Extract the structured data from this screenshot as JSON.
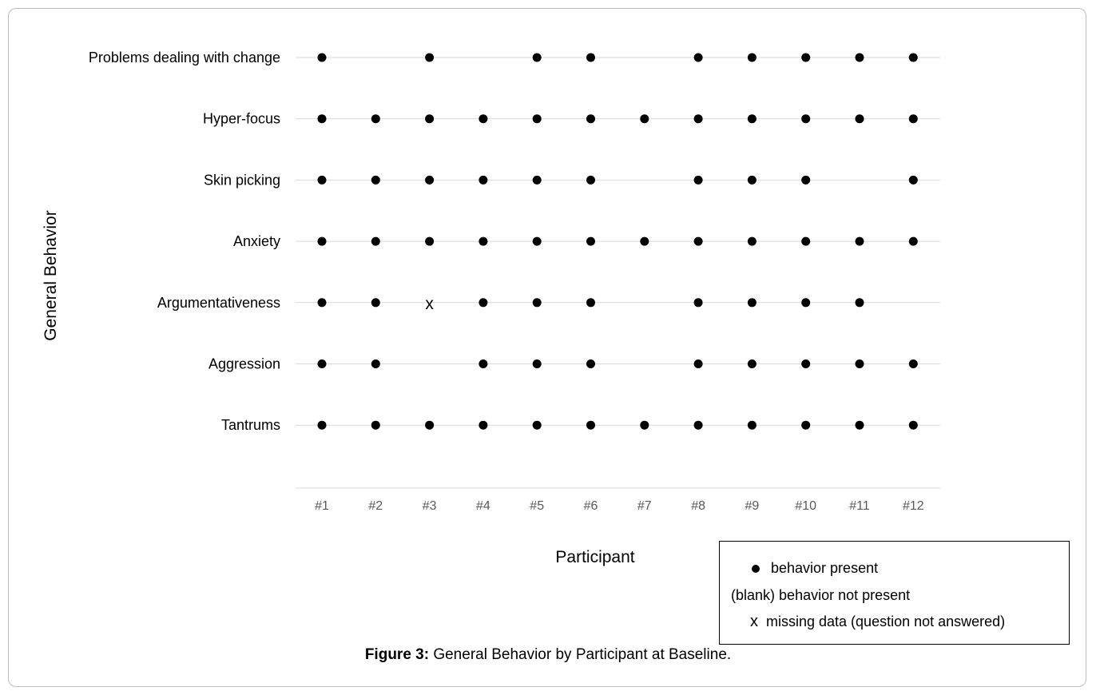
{
  "chart_data": {
    "type": "scatter",
    "ylabel": "General Behavior",
    "xlabel": "Participant",
    "categories": [
      "Problems dealing with change",
      "Hyper-focus",
      "Skin picking",
      "Anxiety",
      "Argumentativeness",
      "Aggression",
      "Tantrums"
    ],
    "participants": [
      "#1",
      "#2",
      "#3",
      "#4",
      "#5",
      "#6",
      "#7",
      "#8",
      "#9",
      "#10",
      "#11",
      "#12"
    ],
    "legend_placement": "bottom-right",
    "grid": "horizontal",
    "values": [
      [
        "present",
        "blank",
        "present",
        "blank",
        "present",
        "present",
        "blank",
        "present",
        "present",
        "present",
        "present",
        "present"
      ],
      [
        "present",
        "present",
        "present",
        "present",
        "present",
        "present",
        "present",
        "present",
        "present",
        "present",
        "present",
        "present"
      ],
      [
        "present",
        "present",
        "present",
        "present",
        "present",
        "present",
        "blank",
        "present",
        "present",
        "present",
        "blank",
        "present"
      ],
      [
        "present",
        "present",
        "present",
        "present",
        "present",
        "present",
        "present",
        "present",
        "present",
        "present",
        "present",
        "present"
      ],
      [
        "present",
        "present",
        "missing",
        "present",
        "present",
        "present",
        "blank",
        "present",
        "present",
        "present",
        "present",
        "blank"
      ],
      [
        "present",
        "present",
        "blank",
        "present",
        "present",
        "present",
        "blank",
        "present",
        "present",
        "present",
        "present",
        "present"
      ],
      [
        "present",
        "present",
        "present",
        "present",
        "present",
        "present",
        "present",
        "present",
        "present",
        "present",
        "present",
        "present"
      ]
    ],
    "missing_symbol": "x",
    "legend": [
      {
        "symbol": "dot",
        "label": "behavior present"
      },
      {
        "symbol": "blank",
        "prefix": "(blank)",
        "label": "behavior not present"
      },
      {
        "symbol": "x",
        "label": "missing data (question not answered)"
      }
    ]
  },
  "caption": {
    "bold": "Figure 3:",
    "text": " General Behavior by Participant at Baseline."
  }
}
